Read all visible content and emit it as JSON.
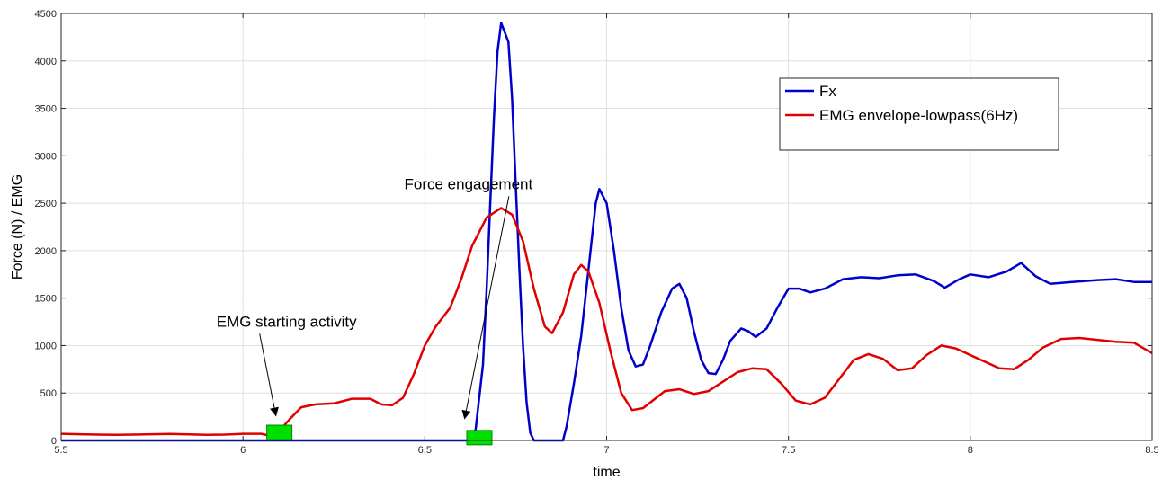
{
  "chart_data": {
    "type": "line",
    "xlabel": "time",
    "ylabel": "Force (N) / EMG",
    "xlim": [
      5.5,
      8.5
    ],
    "ylim": [
      0,
      4500
    ],
    "xticks": [
      "5.5",
      "6",
      "6.5",
      "7",
      "7.5",
      "8",
      "8.5"
    ],
    "yticks": [
      "0",
      "500",
      "1000",
      "1500",
      "2000",
      "2500",
      "3000",
      "3500",
      "4000",
      "4500"
    ],
    "grid": true,
    "legend": "top-right",
    "series": [
      {
        "name": "Fx",
        "color": "#0000cc",
        "points": [
          [
            5.5,
            0
          ],
          [
            6.5,
            0
          ],
          [
            6.62,
            0
          ],
          [
            6.63,
            0
          ],
          [
            6.64,
            120
          ],
          [
            6.66,
            800
          ],
          [
            6.67,
            1600
          ],
          [
            6.68,
            2500
          ],
          [
            6.69,
            3400
          ],
          [
            6.7,
            4100
          ],
          [
            6.71,
            4400
          ],
          [
            6.72,
            4300
          ],
          [
            6.73,
            4200
          ],
          [
            6.74,
            3600
          ],
          [
            6.75,
            2700
          ],
          [
            6.76,
            1800
          ],
          [
            6.77,
            1000
          ],
          [
            6.78,
            400
          ],
          [
            6.79,
            80
          ],
          [
            6.8,
            0
          ],
          [
            6.88,
            0
          ],
          [
            6.89,
            150
          ],
          [
            6.91,
            600
          ],
          [
            6.93,
            1100
          ],
          [
            6.95,
            1800
          ],
          [
            6.97,
            2500
          ],
          [
            6.98,
            2650
          ],
          [
            7.0,
            2500
          ],
          [
            7.02,
            2000
          ],
          [
            7.04,
            1400
          ],
          [
            7.06,
            950
          ],
          [
            7.08,
            780
          ],
          [
            7.1,
            800
          ],
          [
            7.12,
            1000
          ],
          [
            7.15,
            1350
          ],
          [
            7.18,
            1600
          ],
          [
            7.2,
            1650
          ],
          [
            7.22,
            1500
          ],
          [
            7.24,
            1150
          ],
          [
            7.26,
            850
          ],
          [
            7.28,
            710
          ],
          [
            7.3,
            700
          ],
          [
            7.32,
            850
          ],
          [
            7.34,
            1050
          ],
          [
            7.37,
            1180
          ],
          [
            7.39,
            1150
          ],
          [
            7.41,
            1090
          ],
          [
            7.44,
            1180
          ],
          [
            7.47,
            1400
          ],
          [
            7.5,
            1600
          ],
          [
            7.53,
            1600
          ],
          [
            7.56,
            1560
          ],
          [
            7.6,
            1600
          ],
          [
            7.65,
            1700
          ],
          [
            7.7,
            1720
          ],
          [
            7.75,
            1710
          ],
          [
            7.8,
            1740
          ],
          [
            7.85,
            1750
          ],
          [
            7.9,
            1680
          ],
          [
            7.93,
            1610
          ],
          [
            7.97,
            1700
          ],
          [
            8.0,
            1750
          ],
          [
            8.05,
            1720
          ],
          [
            8.1,
            1780
          ],
          [
            8.14,
            1870
          ],
          [
            8.18,
            1730
          ],
          [
            8.22,
            1650
          ],
          [
            8.28,
            1670
          ],
          [
            8.35,
            1690
          ],
          [
            8.4,
            1700
          ],
          [
            8.45,
            1670
          ],
          [
            8.5,
            1670
          ]
        ]
      },
      {
        "name": "EMG envelope-lowpass(6Hz)",
        "color": "#e00000",
        "points": [
          [
            5.5,
            70
          ],
          [
            5.55,
            65
          ],
          [
            5.6,
            62
          ],
          [
            5.65,
            60
          ],
          [
            5.7,
            62
          ],
          [
            5.75,
            65
          ],
          [
            5.8,
            68
          ],
          [
            5.85,
            64
          ],
          [
            5.9,
            60
          ],
          [
            5.95,
            62
          ],
          [
            6.0,
            70
          ],
          [
            6.05,
            70
          ],
          [
            6.08,
            45
          ],
          [
            6.1,
            100
          ],
          [
            6.13,
            230
          ],
          [
            6.16,
            350
          ],
          [
            6.2,
            380
          ],
          [
            6.25,
            390
          ],
          [
            6.3,
            440
          ],
          [
            6.35,
            440
          ],
          [
            6.38,
            380
          ],
          [
            6.41,
            370
          ],
          [
            6.44,
            450
          ],
          [
            6.47,
            700
          ],
          [
            6.5,
            1000
          ],
          [
            6.53,
            1200
          ],
          [
            6.57,
            1400
          ],
          [
            6.6,
            1700
          ],
          [
            6.63,
            2050
          ],
          [
            6.67,
            2350
          ],
          [
            6.71,
            2450
          ],
          [
            6.74,
            2380
          ],
          [
            6.77,
            2100
          ],
          [
            6.8,
            1600
          ],
          [
            6.83,
            1200
          ],
          [
            6.85,
            1130
          ],
          [
            6.88,
            1350
          ],
          [
            6.91,
            1750
          ],
          [
            6.93,
            1850
          ],
          [
            6.95,
            1780
          ],
          [
            6.98,
            1450
          ],
          [
            7.01,
            950
          ],
          [
            7.04,
            500
          ],
          [
            7.07,
            320
          ],
          [
            7.1,
            340
          ],
          [
            7.13,
            430
          ],
          [
            7.16,
            520
          ],
          [
            7.2,
            540
          ],
          [
            7.24,
            490
          ],
          [
            7.28,
            520
          ],
          [
            7.32,
            620
          ],
          [
            7.36,
            720
          ],
          [
            7.4,
            760
          ],
          [
            7.44,
            750
          ],
          [
            7.48,
            600
          ],
          [
            7.52,
            420
          ],
          [
            7.56,
            380
          ],
          [
            7.6,
            450
          ],
          [
            7.64,
            650
          ],
          [
            7.68,
            850
          ],
          [
            7.72,
            910
          ],
          [
            7.76,
            860
          ],
          [
            7.8,
            740
          ],
          [
            7.84,
            760
          ],
          [
            7.88,
            900
          ],
          [
            7.92,
            1000
          ],
          [
            7.96,
            970
          ],
          [
            8.0,
            900
          ],
          [
            8.04,
            830
          ],
          [
            8.08,
            760
          ],
          [
            8.12,
            750
          ],
          [
            8.16,
            850
          ],
          [
            8.2,
            980
          ],
          [
            8.25,
            1070
          ],
          [
            8.3,
            1080
          ],
          [
            8.35,
            1060
          ],
          [
            8.4,
            1040
          ],
          [
            8.45,
            1030
          ],
          [
            8.5,
            920
          ]
        ]
      }
    ],
    "markers": [
      {
        "x": 6.1,
        "y": 85,
        "color": "#00e000"
      },
      {
        "x": 6.65,
        "y": 30,
        "color": "#00e000"
      }
    ],
    "annotations": [
      {
        "text": "EMG starting activity",
        "x": 6.12,
        "y": 1200,
        "arrow_to": [
          6.09,
          270
        ]
      },
      {
        "text": "Force engagement",
        "x": 6.62,
        "y": 2650,
        "arrow_to": [
          6.61,
          240
        ]
      }
    ]
  }
}
